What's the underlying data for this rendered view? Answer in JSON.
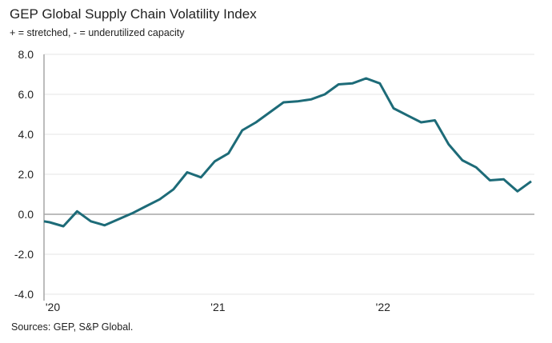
{
  "chart_data": {
    "type": "line",
    "title": "GEP Global Supply Chain Volatility Index",
    "subtitle": "+ = stretched, - = underutilized capacity",
    "source": "Sources: GEP, S&P Global.",
    "xlabel": "",
    "ylabel": "",
    "ylim": [
      -4.0,
      8.0
    ],
    "yticks": [
      "8.0",
      "6.0",
      "4.0",
      "2.0",
      "0.0",
      "-2.0",
      "-4.0"
    ],
    "ytick_values": [
      8,
      6,
      4,
      2,
      0,
      -2,
      -4
    ],
    "xtick_labels": [
      {
        "label": "'20",
        "index": 0
      },
      {
        "label": "'21",
        "index": 12
      },
      {
        "label": "'22",
        "index": 24
      }
    ],
    "grid": true,
    "line_color": "#1d6b78",
    "x": [
      "2020-01",
      "2020-02",
      "2020-03",
      "2020-04",
      "2020-05",
      "2020-06",
      "2020-07",
      "2020-08",
      "2020-09",
      "2020-10",
      "2020-11",
      "2020-12",
      "2021-01",
      "2021-02",
      "2021-03",
      "2021-04",
      "2021-05",
      "2021-06",
      "2021-07",
      "2021-08",
      "2021-09",
      "2021-10",
      "2021-11",
      "2021-12",
      "2022-01",
      "2022-02",
      "2022-03",
      "2022-04",
      "2022-05",
      "2022-06",
      "2022-07",
      "2022-08",
      "2022-09",
      "2022-10",
      "2022-11",
      "2022-12"
    ],
    "values": [
      -0.4,
      -0.6,
      0.15,
      -0.35,
      -0.55,
      -0.25,
      0.05,
      0.4,
      0.75,
      1.25,
      2.1,
      1.85,
      2.65,
      3.05,
      4.2,
      4.6,
      5.1,
      5.6,
      5.65,
      5.75,
      6.0,
      6.5,
      6.55,
      6.8,
      6.55,
      5.3,
      4.95,
      4.6,
      4.7,
      3.5,
      2.7,
      2.35,
      1.7,
      1.75,
      1.15,
      1.65
    ]
  }
}
